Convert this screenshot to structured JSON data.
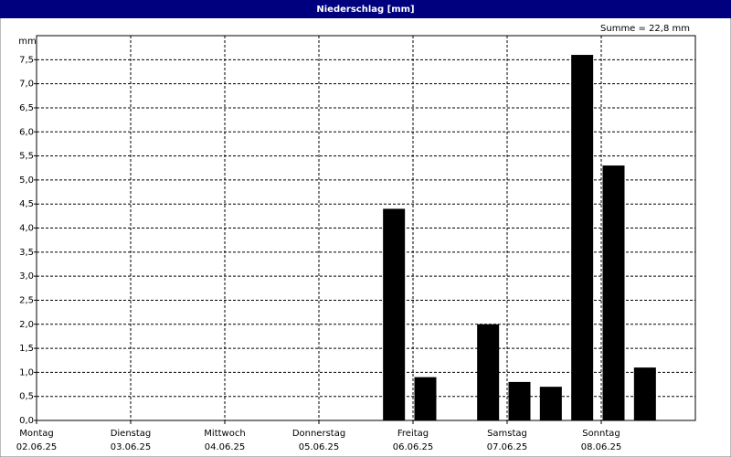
{
  "chart_data": {
    "type": "bar",
    "title": "Niederschlag [mm]",
    "y_unit": "mm",
    "annotation": "Summe = 22,8 mm",
    "categories": [
      null,
      null,
      null,
      null,
      null,
      null,
      null,
      null,
      null,
      null,
      null,
      null,
      null,
      null,
      null,
      null,
      null,
      null,
      null,
      null,
      null
    ],
    "values": [
      0,
      0,
      0,
      0,
      0,
      0,
      0,
      0,
      0,
      0,
      0,
      4.4,
      0.9,
      0,
      2.0,
      0.8,
      0.7,
      7.6,
      5.3,
      1.1,
      0
    ],
    "color": "#000000",
    "ylim": [
      0,
      8
    ],
    "yticks": [
      {
        "value": 0,
        "label": "0,0"
      },
      {
        "value": 0.5,
        "label": "0,5"
      },
      {
        "value": 1,
        "label": "1,0"
      },
      {
        "value": 1.5,
        "label": "1,5"
      },
      {
        "value": 2,
        "label": "2,0"
      },
      {
        "value": 2.5,
        "label": "2,5"
      },
      {
        "value": 3,
        "label": "3,0"
      },
      {
        "value": 3.5,
        "label": "3,5"
      },
      {
        "value": 4,
        "label": "4,0"
      },
      {
        "value": 4.5,
        "label": "4,5"
      },
      {
        "value": 5,
        "label": "5,0"
      },
      {
        "value": 5.5,
        "label": "5,5"
      },
      {
        "value": 6,
        "label": "6,0"
      },
      {
        "value": 6.5,
        "label": "6,5"
      },
      {
        "value": 7,
        "label": "7,0"
      },
      {
        "value": 7.5,
        "label": "7,5"
      }
    ],
    "grid": true,
    "days": [
      {
        "name": "Montag",
        "date": "02.06.25"
      },
      {
        "name": "Dienstag",
        "date": "03.06.25"
      },
      {
        "name": "Mittwoch",
        "date": "04.06.25"
      },
      {
        "name": "Donnerstag",
        "date": "05.06.25"
      },
      {
        "name": "Freitag",
        "date": "06.06.25"
      },
      {
        "name": "Samstag",
        "date": "07.06.25"
      },
      {
        "name": "Sonntag",
        "date": "08.06.25"
      }
    ]
  }
}
